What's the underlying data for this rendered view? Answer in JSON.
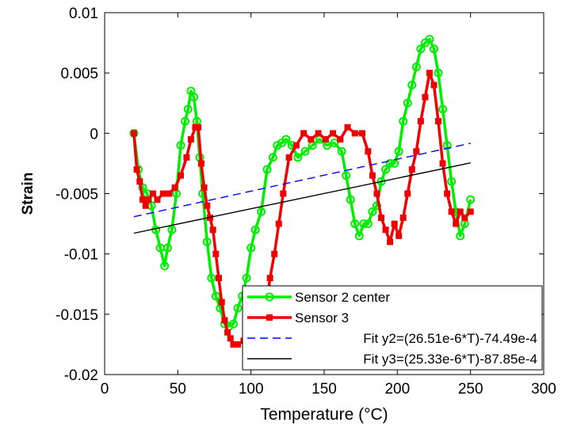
{
  "chart_data": {
    "type": "line",
    "title": "",
    "xlabel": "Temperature (°C)",
    "ylabel": "Strain",
    "xlim": [
      0,
      300
    ],
    "ylim": [
      -0.02,
      0.01
    ],
    "xticks": [
      {
        "value": 0,
        "label": "0"
      },
      {
        "value": 50,
        "label": "50"
      },
      {
        "value": 100,
        "label": "100"
      },
      {
        "value": 150,
        "label": "150"
      },
      {
        "value": 200,
        "label": "200"
      },
      {
        "value": 250,
        "label": "250"
      },
      {
        "value": 300,
        "label": "300"
      }
    ],
    "yticks": [
      {
        "value": -0.02,
        "label": "-0.02"
      },
      {
        "value": -0.015,
        "label": "-0.015"
      },
      {
        "value": -0.01,
        "label": "-0.01"
      },
      {
        "value": -0.005,
        "label": "-0.005"
      },
      {
        "value": 0,
        "label": "0"
      },
      {
        "value": 0.005,
        "label": "0.005"
      },
      {
        "value": 0.01,
        "label": "0.01"
      }
    ],
    "grid": false,
    "legend_position": "bottom-right",
    "series": [
      {
        "name": "Sensor 2 center",
        "color": "#00ee00",
        "style": "solid",
        "marker": "circle",
        "x": [
          20,
          23,
          26,
          29,
          32,
          35,
          38,
          41,
          43,
          46,
          49,
          52,
          55,
          57,
          59,
          61,
          63,
          65,
          67,
          70,
          73,
          76,
          79,
          82,
          85,
          88,
          91,
          94,
          97,
          100,
          103,
          107,
          111,
          115,
          118,
          121,
          124,
          128,
          132,
          137,
          142,
          147,
          152,
          157,
          162,
          165,
          168,
          171,
          174,
          177,
          180,
          183,
          186,
          189,
          192,
          195,
          198,
          201,
          204,
          207,
          210,
          213,
          216,
          219,
          222,
          225,
          228,
          231,
          234,
          237,
          240,
          243,
          246,
          250
        ],
        "y": [
          0,
          -0.003,
          -0.0045,
          -0.005,
          -0.006,
          -0.008,
          -0.0095,
          -0.011,
          -0.0095,
          -0.008,
          -0.005,
          -0.001,
          0.001,
          0.002,
          0.0035,
          0.003,
          0.001,
          -0.002,
          -0.005,
          -0.009,
          -0.012,
          -0.0135,
          -0.0145,
          -0.0158,
          -0.016,
          -0.0158,
          -0.0145,
          -0.0135,
          -0.012,
          -0.0095,
          -0.008,
          -0.0065,
          -0.003,
          -0.002,
          -0.001,
          -0.0008,
          -0.0005,
          -0.001,
          -0.002,
          -0.0015,
          -0.001,
          -0.0005,
          -0.001,
          -0.0008,
          -0.0015,
          -0.0035,
          -0.0055,
          -0.0075,
          -0.0085,
          -0.0075,
          -0.0075,
          -0.0065,
          -0.006,
          -0.004,
          -0.003,
          -0.0025,
          -0.0025,
          -0.0015,
          0.001,
          0.0025,
          0.004,
          0.0055,
          0.007,
          0.0075,
          0.0078,
          0.007,
          0.005,
          0.002,
          -0.001,
          -0.004,
          -0.0065,
          -0.0085,
          -0.0075,
          -0.0055
        ]
      },
      {
        "name": "Sensor 3",
        "color": "#ee0000",
        "style": "solid",
        "marker": "square",
        "x": [
          20,
          22,
          24,
          26,
          28,
          30,
          33,
          36,
          40,
          44,
          48,
          52,
          56,
          59,
          62,
          64,
          66,
          68,
          70,
          72,
          74,
          76,
          78,
          80,
          82,
          84,
          86,
          88,
          91,
          95,
          100,
          105,
          110,
          113,
          116,
          119,
          122,
          126,
          131,
          136,
          141,
          146,
          151,
          156,
          161,
          166,
          171,
          176,
          180,
          183,
          186,
          189,
          192,
          195,
          198,
          201,
          204,
          207,
          210,
          213,
          216,
          219,
          222,
          225,
          228,
          231,
          234,
          237,
          240,
          243,
          246,
          250
        ],
        "y": [
          0,
          -0.003,
          -0.004,
          -0.0055,
          -0.006,
          -0.0055,
          -0.005,
          -0.0055,
          -0.005,
          -0.005,
          -0.0045,
          -0.0035,
          -0.002,
          -0.0005,
          0.0005,
          0.0005,
          -0.0025,
          -0.0045,
          -0.006,
          -0.007,
          -0.008,
          -0.01,
          -0.012,
          -0.014,
          -0.0155,
          -0.0165,
          -0.017,
          -0.0175,
          -0.0175,
          -0.0172,
          -0.0165,
          -0.0158,
          -0.0148,
          -0.012,
          -0.01,
          -0.0075,
          -0.005,
          -0.002,
          -0.001,
          0,
          -0.0005,
          0,
          -0.0005,
          0,
          -0.0005,
          0.0005,
          0,
          0,
          -0.0015,
          -0.0035,
          -0.005,
          -0.007,
          -0.008,
          -0.009,
          -0.0075,
          -0.0085,
          -0.007,
          -0.005,
          -0.003,
          -0.0015,
          0.001,
          0.003,
          0.005,
          0.004,
          0.001,
          -0.0025,
          -0.005,
          -0.0065,
          -0.0075,
          -0.0065,
          -0.007,
          -0.0065
        ]
      },
      {
        "name": "Fit y2=(26.51e-6*T)-74.49e-4",
        "color": "#0000ff",
        "style": "dashed",
        "marker": "none",
        "x": [
          20,
          250
        ],
        "y": [
          -0.00692,
          -0.000822
        ]
      },
      {
        "name": "Fit y3=(25.33e-6*T)-87.85e-4",
        "color": "#000000",
        "style": "solid",
        "marker": "none",
        "x": [
          20,
          250
        ],
        "y": [
          -0.00828,
          -0.00245
        ]
      }
    ]
  }
}
